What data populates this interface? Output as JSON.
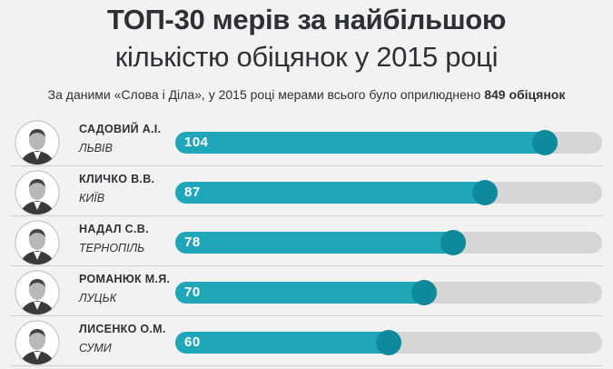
{
  "header": {
    "title": "ТОП-30 мерів за найбільшою",
    "subtitle": "кількістю обіцянок у 2015 році",
    "note_text": "За даними «Слова і Діла», у 2015 році мерами всього було оприлюднено ",
    "note_bold": "849 обіцянок"
  },
  "chart_data": {
    "type": "bar",
    "orientation": "horizontal",
    "title": "ТОП-30 мерів за найбільшою кількістю обіцянок у 2015 році",
    "categories": [
      "САДОВИЙ А.І.",
      "КЛИЧКО В.В.",
      "НАДАЛ С.В.",
      "РОМАНЮК М.Я.",
      "ЛИСЕНКО О.М."
    ],
    "cities": [
      "ЛЬВІВ",
      "КИЇВ",
      "ТЕРНОПІЛЬ",
      "ЛУЦЬК",
      "СУМИ"
    ],
    "values": [
      104,
      87,
      78,
      70,
      60
    ],
    "xlim": [
      0,
      120
    ],
    "grid": false,
    "colors": {
      "bar": "#1fa6b8",
      "bar_end": "#0e8a9c",
      "track": "#d6d6d6"
    }
  }
}
